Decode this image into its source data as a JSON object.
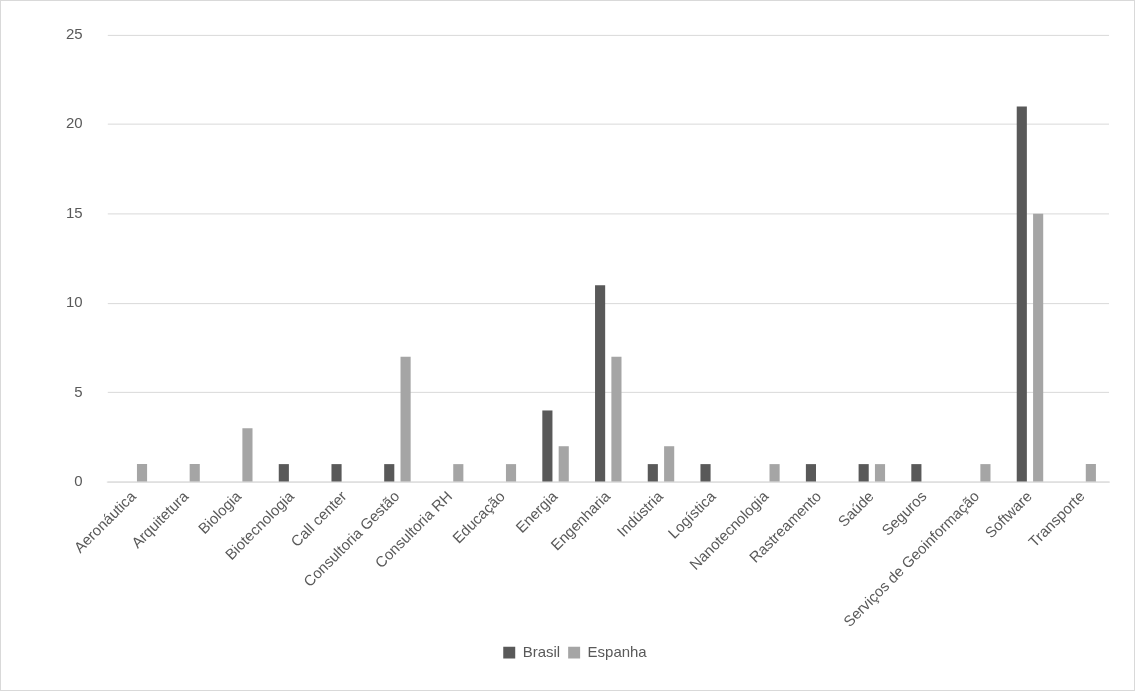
{
  "chart_data": {
    "type": "bar",
    "categories": [
      "Aeronáutica",
      "Arquitetura",
      "Biologia",
      "Biotecnologia",
      "Call center",
      "Consultoria Gestão",
      "Consultoria RH",
      "Educação",
      "Energia",
      "Engenharia",
      "Indústria",
      "Logística",
      "Nanotecnologia",
      "Rastreamento",
      "Saúde",
      "Seguros",
      "Serviços de Geoinformação",
      "Software",
      "Transporte"
    ],
    "series": [
      {
        "name": "Brasil",
        "color": "#595959",
        "values": [
          0,
          0,
          0,
          1,
          1,
          1,
          0,
          0,
          4,
          11,
          1,
          1,
          0,
          1,
          1,
          1,
          0,
          21,
          0
        ]
      },
      {
        "name": "Espanha",
        "color": "#a5a5a5",
        "values": [
          1,
          1,
          3,
          0,
          0,
          7,
          1,
          1,
          2,
          7,
          2,
          0,
          1,
          0,
          1,
          0,
          1,
          15,
          1
        ]
      }
    ],
    "ylim": [
      0,
      25
    ],
    "yticks": [
      0,
      5,
      10,
      15,
      20,
      25
    ],
    "grid": "y",
    "legend": "bottom"
  }
}
